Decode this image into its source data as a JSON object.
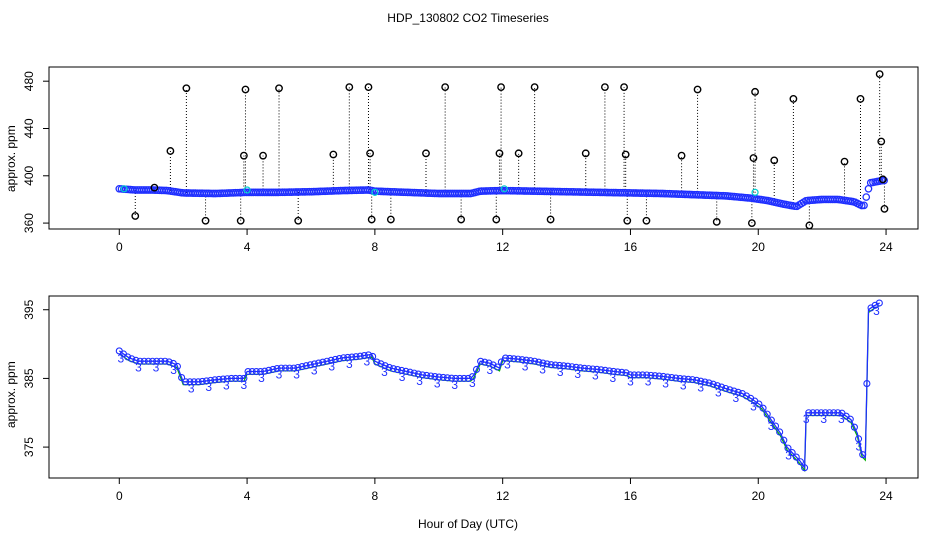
{
  "title": "HDP_130802  CO2 Timeseries",
  "xlabel": "Hour of Day (UTC)",
  "colors": {
    "raw": "#000000",
    "smoothed": "#1f2fff",
    "fit": "#00b000",
    "flag": "#00d0d0",
    "axis": "#000000"
  },
  "chart_data": [
    {
      "type": "scatter",
      "ylabel": "approx. ppm",
      "xlim": [
        -2.2,
        25
      ],
      "ylim": [
        355,
        492
      ],
      "xticks": [
        0,
        4,
        8,
        12,
        16,
        20,
        24
      ],
      "yticks": [
        360,
        400,
        440,
        480
      ],
      "baseline": [
        [
          0,
          389
        ],
        [
          0.5,
          388
        ],
        [
          1,
          388
        ],
        [
          1.5,
          387.5
        ],
        [
          2,
          385.5
        ],
        [
          3,
          385
        ],
        [
          4,
          386
        ],
        [
          5,
          386
        ],
        [
          6,
          386.5
        ],
        [
          7,
          387.5
        ],
        [
          7.8,
          388
        ],
        [
          8,
          387
        ],
        [
          9,
          386
        ],
        [
          10,
          385
        ],
        [
          11,
          385
        ],
        [
          11.3,
          387
        ],
        [
          12,
          387.5
        ],
        [
          13,
          387
        ],
        [
          14,
          386.5
        ],
        [
          15,
          386
        ],
        [
          16,
          385.5
        ],
        [
          17,
          385
        ],
        [
          18,
          384
        ],
        [
          19,
          383
        ],
        [
          19.8,
          381
        ],
        [
          20.3,
          379
        ],
        [
          20.8,
          376
        ],
        [
          21.2,
          374
        ],
        [
          21.5,
          379
        ],
        [
          22,
          380
        ],
        [
          22.5,
          380
        ],
        [
          23,
          378
        ],
        [
          23.3,
          374
        ],
        [
          23.5,
          394
        ],
        [
          23.9,
          396
        ]
      ],
      "spikes": [
        [
          0.5,
          366
        ],
        [
          1.1,
          390
        ],
        [
          1.6,
          421
        ],
        [
          2.1,
          474
        ],
        [
          2.7,
          362
        ],
        [
          3.8,
          362
        ],
        [
          3.9,
          417
        ],
        [
          3.95,
          473
        ],
        [
          4.5,
          417
        ],
        [
          5.0,
          474
        ],
        [
          5.6,
          362
        ],
        [
          6.7,
          418
        ],
        [
          7.2,
          475
        ],
        [
          7.8,
          475
        ],
        [
          7.85,
          419
        ],
        [
          7.9,
          363
        ],
        [
          8.5,
          363
        ],
        [
          9.6,
          419
        ],
        [
          10.2,
          475
        ],
        [
          10.7,
          363
        ],
        [
          11.8,
          363
        ],
        [
          11.9,
          419
        ],
        [
          11.95,
          475
        ],
        [
          12.5,
          419
        ],
        [
          13.0,
          475
        ],
        [
          13.5,
          363
        ],
        [
          14.6,
          419
        ],
        [
          15.2,
          475
        ],
        [
          15.8,
          475
        ],
        [
          15.85,
          418
        ],
        [
          15.9,
          362
        ],
        [
          16.5,
          362
        ],
        [
          17.6,
          417
        ],
        [
          18.1,
          473
        ],
        [
          18.7,
          361
        ],
        [
          19.8,
          360
        ],
        [
          19.85,
          415
        ],
        [
          19.9,
          471
        ],
        [
          20.5,
          413
        ],
        [
          21.1,
          465
        ],
        [
          21.6,
          358
        ],
        [
          22.7,
          412
        ],
        [
          23.2,
          465
        ],
        [
          23.8,
          486
        ],
        [
          23.85,
          429
        ],
        [
          23.9,
          397
        ],
        [
          23.95,
          372
        ]
      ]
    },
    {
      "type": "line",
      "ylabel": "approx. ppm",
      "xlim": [
        -2.2,
        25
      ],
      "ylim": [
        370.5,
        397
      ],
      "xticks": [
        0,
        4,
        8,
        12,
        16,
        20,
        24
      ],
      "yticks": [
        375,
        385,
        395
      ],
      "marker_label": "3",
      "series": [
        {
          "values": [
            [
              0,
              389
            ],
            [
              0.3,
              388
            ],
            [
              0.6,
              387.5
            ],
            [
              1.0,
              387.5
            ],
            [
              1.5,
              387.5
            ],
            [
              1.8,
              387
            ],
            [
              2.0,
              384.5
            ],
            [
              2.5,
              384.5
            ],
            [
              3.0,
              384.8
            ],
            [
              3.5,
              385
            ],
            [
              3.9,
              385
            ],
            [
              4.0,
              386
            ],
            [
              4.5,
              386
            ],
            [
              5.0,
              386.5
            ],
            [
              5.5,
              386.5
            ],
            [
              6.0,
              387
            ],
            [
              6.5,
              387.5
            ],
            [
              7.0,
              388
            ],
            [
              7.5,
              388.2
            ],
            [
              7.9,
              388.5
            ],
            [
              8.0,
              387.5
            ],
            [
              8.5,
              386.5
            ],
            [
              9.0,
              386
            ],
            [
              9.5,
              385.5
            ],
            [
              10.0,
              385.2
            ],
            [
              10.5,
              385
            ],
            [
              11.0,
              385
            ],
            [
              11.1,
              385.5
            ],
            [
              11.3,
              387.5
            ],
            [
              11.6,
              387.2
            ],
            [
              11.9,
              386.5
            ],
            [
              12.0,
              388
            ],
            [
              12.5,
              387.8
            ],
            [
              13.0,
              387.5
            ],
            [
              13.5,
              387
            ],
            [
              14.0,
              386.8
            ],
            [
              14.5,
              386.5
            ],
            [
              15.0,
              386.3
            ],
            [
              15.5,
              386
            ],
            [
              15.9,
              385.8
            ],
            [
              16.0,
              385.5
            ],
            [
              16.5,
              385.5
            ],
            [
              17.0,
              385.3
            ],
            [
              17.5,
              385
            ],
            [
              18.0,
              384.8
            ],
            [
              18.5,
              384.3
            ],
            [
              19.0,
              383.5
            ],
            [
              19.5,
              382.8
            ],
            [
              19.8,
              382
            ],
            [
              20.1,
              381
            ],
            [
              20.4,
              379
            ],
            [
              20.7,
              377
            ],
            [
              20.9,
              375
            ],
            [
              21.1,
              374
            ],
            [
              21.3,
              373
            ],
            [
              21.45,
              372
            ],
            [
              21.5,
              380
            ],
            [
              21.8,
              380
            ],
            [
              22.2,
              380
            ],
            [
              22.6,
              380
            ],
            [
              22.9,
              379
            ],
            [
              23.1,
              377
            ],
            [
              23.25,
              374
            ],
            [
              23.35,
              373.5
            ],
            [
              23.45,
              395
            ],
            [
              23.6,
              395.5
            ],
            [
              23.8,
              396
            ]
          ]
        }
      ]
    }
  ]
}
